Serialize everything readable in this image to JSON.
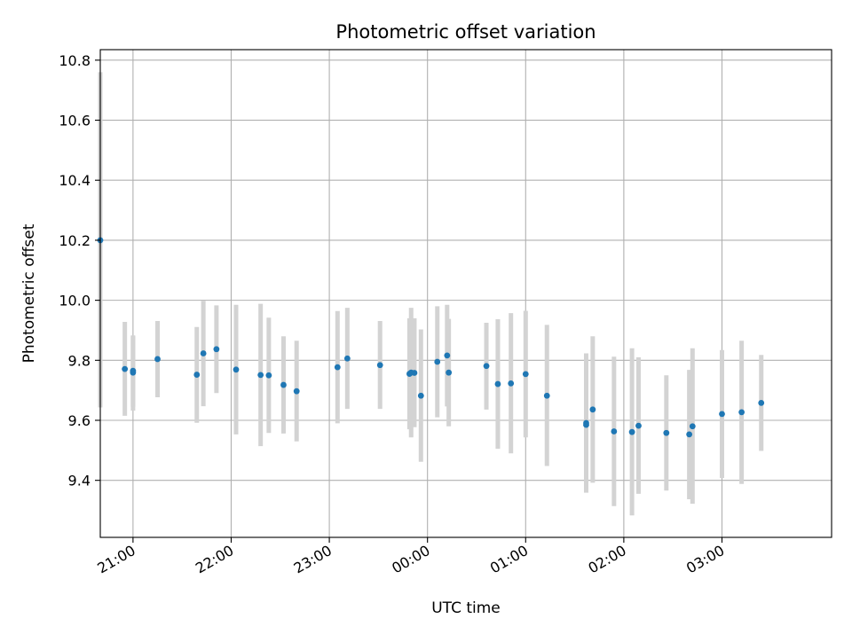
{
  "chart_data": {
    "type": "scatter",
    "title": "Photometric offset variation",
    "xlabel": "UTC time",
    "ylabel": "Photometric offset",
    "grid": true,
    "xlim": [
      "20:40",
      "04:07"
    ],
    "ylim": [
      9.21,
      10.835
    ],
    "x_ticks": [
      "21:00",
      "22:00",
      "23:00",
      "00:00",
      "01:00",
      "02:00",
      "03:00"
    ],
    "y_ticks": [
      "9.4",
      "9.6",
      "9.8",
      "10.0",
      "10.2",
      "10.4",
      "10.6",
      "10.8"
    ],
    "y_tick_values": [
      9.4,
      9.6,
      9.8,
      10.0,
      10.2,
      10.4,
      10.6,
      10.8
    ],
    "colors": {
      "point": "#1f77b4",
      "errorbar": "#d3d3d3",
      "grid": "#b0b0b0"
    },
    "points": [
      {
        "x": "20:40",
        "y": 10.2,
        "yerr_low": 9.643,
        "yerr_high": 10.76
      },
      {
        "x": "20:55",
        "y": 9.771,
        "yerr_low": 9.615,
        "yerr_high": 9.928
      },
      {
        "x": "21:00",
        "y": 9.759,
        "yerr_low": 9.632,
        "yerr_high": 9.883
      },
      {
        "x": "21:00",
        "y": 9.765,
        "yerr_low": 9.645,
        "yerr_high": 9.88
      },
      {
        "x": "21:15",
        "y": 9.804,
        "yerr_low": 9.677,
        "yerr_high": 9.931
      },
      {
        "x": "21:39",
        "y": 9.752,
        "yerr_low": 9.592,
        "yerr_high": 9.911
      },
      {
        "x": "21:43",
        "y": 9.823,
        "yerr_low": 9.647,
        "yerr_high": 9.998
      },
      {
        "x": "21:51",
        "y": 9.837,
        "yerr_low": 9.691,
        "yerr_high": 9.983
      },
      {
        "x": "22:03",
        "y": 9.769,
        "yerr_low": 9.553,
        "yerr_high": 9.985
      },
      {
        "x": "22:18",
        "y": 9.751,
        "yerr_low": 9.514,
        "yerr_high": 9.988
      },
      {
        "x": "22:23",
        "y": 9.75,
        "yerr_low": 9.558,
        "yerr_high": 9.942
      },
      {
        "x": "22:32",
        "y": 9.718,
        "yerr_low": 9.556,
        "yerr_high": 9.88
      },
      {
        "x": "22:40",
        "y": 9.697,
        "yerr_low": 9.53,
        "yerr_high": 9.865
      },
      {
        "x": "23:05",
        "y": 9.777,
        "yerr_low": 9.59,
        "yerr_high": 9.964
      },
      {
        "x": "23:11",
        "y": 9.806,
        "yerr_low": 9.638,
        "yerr_high": 9.975
      },
      {
        "x": "23:31",
        "y": 9.784,
        "yerr_low": 9.638,
        "yerr_high": 9.931
      },
      {
        "x": "23:49",
        "y": 9.755,
        "yerr_low": 9.57,
        "yerr_high": 9.94
      },
      {
        "x": "23:50",
        "y": 9.759,
        "yerr_low": 9.543,
        "yerr_high": 9.975
      },
      {
        "x": "23:52",
        "y": 9.758,
        "yerr_low": 9.577,
        "yerr_high": 9.94
      },
      {
        "x": "23:56",
        "y": 9.682,
        "yerr_low": 9.462,
        "yerr_high": 9.903
      },
      {
        "x": "00:06",
        "y": 9.795,
        "yerr_low": 9.61,
        "yerr_high": 9.98
      },
      {
        "x": "00:12",
        "y": 9.816,
        "yerr_low": 9.646,
        "yerr_high": 9.985
      },
      {
        "x": "00:13",
        "y": 9.759,
        "yerr_low": 9.58,
        "yerr_high": 9.938
      },
      {
        "x": "00:36",
        "y": 9.781,
        "yerr_low": 9.636,
        "yerr_high": 9.925
      },
      {
        "x": "00:43",
        "y": 9.721,
        "yerr_low": 9.505,
        "yerr_high": 9.937
      },
      {
        "x": "00:51",
        "y": 9.723,
        "yerr_low": 9.49,
        "yerr_high": 9.957
      },
      {
        "x": "01:00",
        "y": 9.754,
        "yerr_low": 9.543,
        "yerr_high": 9.965
      },
      {
        "x": "01:13",
        "y": 9.682,
        "yerr_low": 9.448,
        "yerr_high": 9.918
      },
      {
        "x": "01:37",
        "y": 9.591,
        "yerr_low": 9.359,
        "yerr_high": 9.823
      },
      {
        "x": "01:37",
        "y": 9.585,
        "yerr_low": 9.37,
        "yerr_high": 9.8
      },
      {
        "x": "01:41",
        "y": 9.636,
        "yerr_low": 9.392,
        "yerr_high": 9.88
      },
      {
        "x": "01:54",
        "y": 9.563,
        "yerr_low": 9.314,
        "yerr_high": 9.812
      },
      {
        "x": "02:05",
        "y": 9.561,
        "yerr_low": 9.283,
        "yerr_high": 9.84
      },
      {
        "x": "02:09",
        "y": 9.582,
        "yerr_low": 9.355,
        "yerr_high": 9.81
      },
      {
        "x": "02:26",
        "y": 9.558,
        "yerr_low": 9.366,
        "yerr_high": 9.75
      },
      {
        "x": "02:40",
        "y": 9.553,
        "yerr_low": 9.337,
        "yerr_high": 9.768
      },
      {
        "x": "02:42",
        "y": 9.58,
        "yerr_low": 9.322,
        "yerr_high": 9.84
      },
      {
        "x": "03:00",
        "y": 9.621,
        "yerr_low": 9.408,
        "yerr_high": 9.834
      },
      {
        "x": "03:12",
        "y": 9.627,
        "yerr_low": 9.388,
        "yerr_high": 9.865
      },
      {
        "x": "03:24",
        "y": 9.658,
        "yerr_low": 9.498,
        "yerr_high": 9.818
      }
    ]
  }
}
